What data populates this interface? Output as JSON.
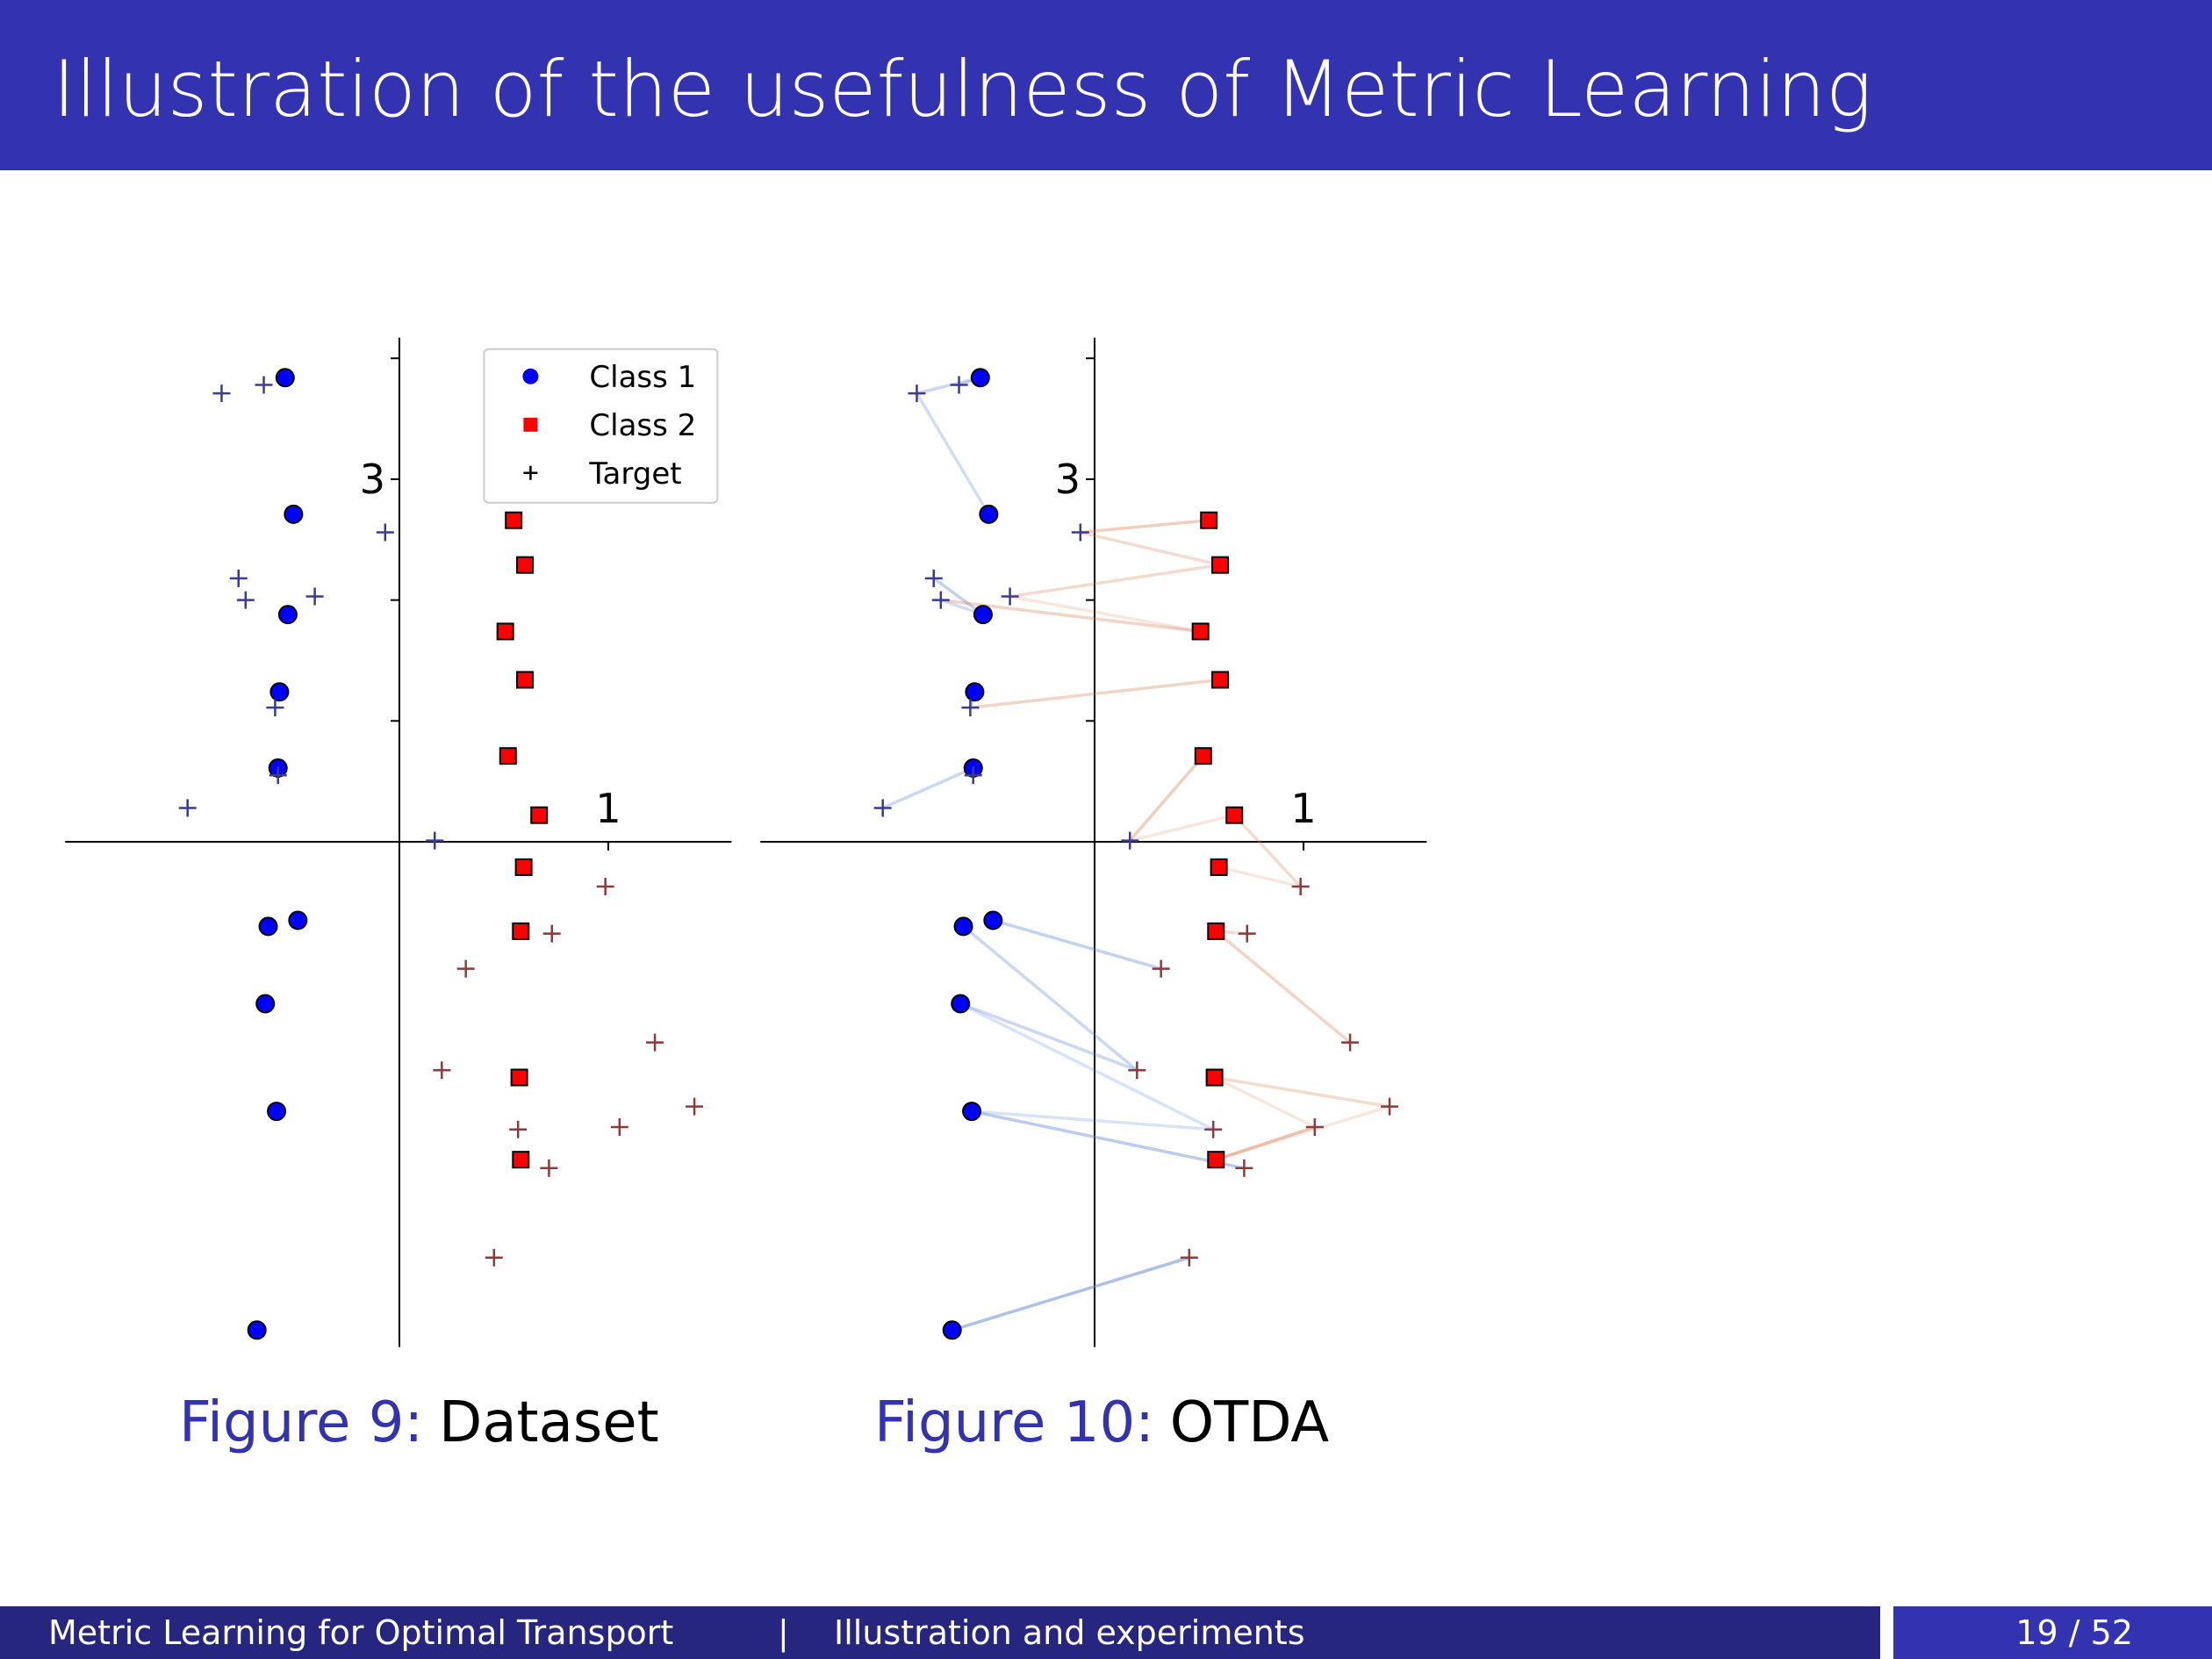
{
  "header": {
    "title": "Illustration of the usefulness of Metric Learning"
  },
  "chart_data": [
    {
      "type": "scatter",
      "caption_label": "Figure 9:",
      "caption": "Dataset",
      "xlim": [
        -1.6,
        1.59
      ],
      "ylim": [
        -4.18,
        4.17
      ],
      "xticks": [
        1
      ],
      "yticks": [
        {
          "value": 1,
          "label": null
        },
        {
          "value": 2,
          "label": null
        },
        3,
        {
          "value": 4,
          "label": null
        }
      ],
      "legend": "upper right",
      "series": [
        {
          "name": "Class 1",
          "color": "#0000ff",
          "marker": "circle",
          "x": [
            -0.547,
            -0.507,
            -0.534,
            -0.574,
            -0.581,
            -0.628,
            -0.486,
            -0.642,
            -0.588,
            -0.682
          ],
          "values": [
            3.84,
            2.71,
            1.88,
            1.24,
            0.61,
            -0.7,
            -0.65,
            -1.34,
            -2.23,
            -4.04
          ]
        },
        {
          "name": "Class 2",
          "color": "#ff0000",
          "marker": "square",
          "x": [
            0.547,
            0.601,
            0.507,
            0.601,
            0.52,
            0.669,
            0.595,
            0.581,
            0.574,
            0.581
          ],
          "values": [
            2.66,
            2.29,
            1.74,
            1.34,
            0.71,
            0.22,
            -0.21,
            -0.74,
            -1.95,
            -2.63
          ]
        },
        {
          "name": "Target",
          "color": "#000000",
          "marker": "plus",
          "point_colors": [
            "#3b3b8f",
            "#3b3b8f",
            "#3b3b8f",
            "#3b3b8f",
            "#3b3b8f",
            "#3b3b8f",
            "#3b3b8f",
            "#3b3b8f",
            "#3b3b8f",
            "#3b3b8f",
            "#8b3b3b",
            "#8b3b3b",
            "#8b3b3b",
            "#8b3b3b",
            "#8b3b3b",
            "#8b3b3b",
            "#8b3b3b",
            "#8b3b3b",
            "#8b3b3b",
            "#8b3b3b"
          ],
          "x": [
            -0.851,
            -0.649,
            -0.068,
            -0.77,
            -0.736,
            -0.405,
            -0.595,
            -0.581,
            -1.014,
            0.169,
            0.986,
            0.73,
            0.318,
            1.223,
            0.203,
            1.412,
            1.054,
            0.568,
            0.716,
            0.453
          ],
          "values": [
            3.71,
            3.78,
            2.56,
            2.18,
            2.0,
            2.03,
            1.11,
            0.55,
            0.28,
            0.01,
            -0.37,
            -0.76,
            -1.05,
            -1.66,
            -1.89,
            -2.19,
            -2.36,
            -2.38,
            -2.7,
            -3.44
          ]
        }
      ]
    },
    {
      "type": "scatter",
      "caption_label": "Figure 10:",
      "caption": "OTDA",
      "xlim": [
        -1.6,
        1.59
      ],
      "ylim": [
        -4.18,
        4.17
      ],
      "xticks": [
        1
      ],
      "yticks": [
        {
          "value": 1,
          "label": null
        },
        {
          "value": 2,
          "label": null
        },
        3,
        {
          "value": 4,
          "label": null
        }
      ],
      "series": [
        {
          "name": "Class 1",
          "color": "#0000ff",
          "marker": "circle",
          "x": [
            -0.547,
            -0.507,
            -0.534,
            -0.574,
            -0.581,
            -0.628,
            -0.486,
            -0.642,
            -0.588,
            -0.682
          ],
          "values": [
            3.84,
            2.71,
            1.88,
            1.24,
            0.61,
            -0.7,
            -0.65,
            -1.34,
            -2.23,
            -4.04
          ]
        },
        {
          "name": "Class 2",
          "color": "#ff0000",
          "marker": "square",
          "x": [
            0.547,
            0.601,
            0.507,
            0.601,
            0.52,
            0.669,
            0.595,
            0.581,
            0.574,
            0.581
          ],
          "values": [
            2.66,
            2.29,
            1.74,
            1.34,
            0.71,
            0.22,
            -0.21,
            -0.74,
            -1.95,
            -2.63
          ]
        },
        {
          "name": "Target",
          "color": "#000000",
          "marker": "plus",
          "point_colors": [
            "#3b3b8f",
            "#3b3b8f",
            "#3b3b8f",
            "#3b3b8f",
            "#3b3b8f",
            "#3b3b8f",
            "#3b3b8f",
            "#3b3b8f",
            "#3b3b8f",
            "#3b3b8f",
            "#8b3b3b",
            "#8b3b3b",
            "#8b3b3b",
            "#8b3b3b",
            "#8b3b3b",
            "#8b3b3b",
            "#8b3b3b",
            "#8b3b3b",
            "#8b3b3b",
            "#8b3b3b"
          ],
          "x": [
            -0.851,
            -0.649,
            -0.068,
            -0.77,
            -0.736,
            -0.405,
            -0.595,
            -0.581,
            -1.014,
            0.169,
            0.986,
            0.73,
            0.318,
            1.223,
            0.203,
            1.412,
            1.054,
            0.568,
            0.716,
            0.453
          ],
          "values": [
            3.71,
            3.78,
            2.56,
            2.18,
            2.0,
            2.03,
            1.11,
            0.55,
            0.28,
            0.01,
            -0.37,
            -0.76,
            -1.05,
            -1.66,
            -1.89,
            -2.19,
            -2.36,
            -2.38,
            -2.7,
            -3.44
          ]
        }
      ],
      "link_colors": [
        "#6a8ed6",
        "#d9885f"
      ],
      "links": [
        {
          "source": [
            0,
            0
          ],
          "target": 0,
          "weight": 0.35
        },
        {
          "source": [
            0,
            0
          ],
          "target": 1,
          "weight": 0.3
        },
        {
          "source": [
            0,
            1
          ],
          "target": 0,
          "weight": 0.3
        },
        {
          "source": [
            0,
            2
          ],
          "target": 3,
          "weight": 0.4
        },
        {
          "source": [
            0,
            2
          ],
          "target": 4,
          "weight": 0.3
        },
        {
          "source": [
            0,
            3
          ],
          "target": 6,
          "weight": 0.45
        },
        {
          "source": [
            0,
            4
          ],
          "target": 8,
          "weight": 0.35
        },
        {
          "source": [
            0,
            4
          ],
          "target": 7,
          "weight": 0.3
        },
        {
          "source": [
            0,
            6
          ],
          "target": 12,
          "weight": 0.4
        },
        {
          "source": [
            0,
            5
          ],
          "target": 14,
          "weight": 0.35
        },
        {
          "source": [
            0,
            7
          ],
          "target": 14,
          "weight": 0.35
        },
        {
          "source": [
            0,
            7
          ],
          "target": 17,
          "weight": 0.25
        },
        {
          "source": [
            0,
            8
          ],
          "target": 17,
          "weight": 0.25
        },
        {
          "source": [
            0,
            8
          ],
          "target": 18,
          "weight": 0.45
        },
        {
          "source": [
            0,
            9
          ],
          "target": 19,
          "weight": 0.55
        },
        {
          "source": [
            1,
            0
          ],
          "target": 2,
          "weight": 0.4
        },
        {
          "source": [
            1,
            1
          ],
          "target": 2,
          "weight": 0.3
        },
        {
          "source": [
            1,
            1
          ],
          "target": 5,
          "weight": 0.3
        },
        {
          "source": [
            1,
            2
          ],
          "target": 4,
          "weight": 0.35
        },
        {
          "source": [
            1,
            2
          ],
          "target": 5,
          "weight": 0.2
        },
        {
          "source": [
            1,
            3
          ],
          "target": 6,
          "weight": 0.35
        },
        {
          "source": [
            1,
            4
          ],
          "target": 9,
          "weight": 0.4
        },
        {
          "source": [
            1,
            5
          ],
          "target": 9,
          "weight": 0.2
        },
        {
          "source": [
            1,
            5
          ],
          "target": 10,
          "weight": 0.3
        },
        {
          "source": [
            1,
            6
          ],
          "target": 10,
          "weight": 0.2
        },
        {
          "source": [
            1,
            7
          ],
          "target": 13,
          "weight": 0.35
        },
        {
          "source": [
            1,
            7
          ],
          "target": 11,
          "weight": 0.3
        },
        {
          "source": [
            1,
            8
          ],
          "target": 15,
          "weight": 0.3
        },
        {
          "source": [
            1,
            8
          ],
          "target": 16,
          "weight": 0.2
        },
        {
          "source": [
            1,
            9
          ],
          "target": 16,
          "weight": 0.45
        },
        {
          "source": [
            1,
            9
          ],
          "target": 15,
          "weight": 0.2
        }
      ]
    }
  ],
  "footer": {
    "left": "Metric Learning for Optimal Transport",
    "separator": "|",
    "section": "Illustration and experiments",
    "page": "19 / 52"
  }
}
